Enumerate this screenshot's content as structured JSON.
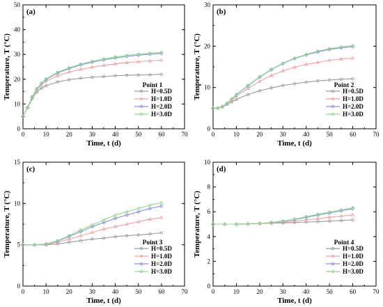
{
  "series_colors": [
    "#9a9a9a",
    "#f0a0a4",
    "#8a8fd8",
    "#90d890"
  ],
  "chart_data": [
    {
      "type": "line",
      "panel_label": "(a)",
      "point_label": "Point 1",
      "xlabel": "Time, t (d)",
      "ylabel": "Temperature, T (°C)",
      "xlim": [
        0,
        70
      ],
      "ylim": [
        0,
        50
      ],
      "xticks": [
        0,
        10,
        20,
        30,
        40,
        50,
        60,
        70
      ],
      "yticks": [
        0,
        10,
        20,
        30,
        40,
        50
      ],
      "grid": false,
      "legend_position": "bottom-right",
      "x": [
        0,
        2,
        4,
        6,
        8,
        10,
        15,
        20,
        25,
        30,
        35,
        40,
        45,
        50,
        55,
        60
      ],
      "series": [
        {
          "name": "H=0.5D",
          "values": [
            5,
            8.5,
            12.2,
            14.8,
            16.4,
            17.4,
            18.9,
            19.8,
            20.4,
            20.8,
            21.1,
            21.4,
            21.6,
            21.7,
            21.8,
            22
          ]
        },
        {
          "name": "H=1.0D",
          "values": [
            5,
            8.6,
            12.8,
            15.8,
            17.8,
            19.2,
            21.4,
            22.9,
            24,
            24.9,
            25.6,
            26.2,
            26.7,
            27.1,
            27.4,
            27.7
          ]
        },
        {
          "name": "H=2.0D",
          "values": [
            5,
            8.6,
            12.9,
            16.1,
            18.3,
            19.9,
            22.5,
            24.3,
            25.8,
            26.9,
            27.8,
            28.6,
            29.2,
            29.7,
            30.1,
            30.4
          ]
        },
        {
          "name": "H=3.0D",
          "values": [
            5,
            8.6,
            13,
            16.2,
            18.4,
            20.1,
            22.8,
            24.6,
            26.1,
            27.2,
            28.2,
            29,
            29.6,
            30.1,
            30.5,
            30.8
          ]
        }
      ]
    },
    {
      "type": "line",
      "panel_label": "(b)",
      "point_label": "Point 2",
      "xlabel": "Time, t (d)",
      "ylabel": "Temperature, T (°C)",
      "xlim": [
        0,
        70
      ],
      "ylim": [
        0,
        30
      ],
      "xticks": [
        0,
        10,
        20,
        30,
        40,
        50,
        60,
        70
      ],
      "yticks": [
        0,
        10,
        20,
        30
      ],
      "grid": false,
      "legend_position": "bottom-right",
      "x": [
        0,
        2,
        4,
        6,
        8,
        10,
        15,
        20,
        25,
        30,
        35,
        40,
        45,
        50,
        55,
        60
      ],
      "series": [
        {
          "name": "H=0.5D",
          "values": [
            5,
            5,
            5.3,
            5.9,
            6.5,
            7.1,
            8.3,
            9.2,
            9.9,
            10.5,
            10.9,
            11.3,
            11.6,
            11.8,
            12,
            12.1
          ]
        },
        {
          "name": "H=1.0D",
          "values": [
            5,
            5,
            5.4,
            6.1,
            7,
            7.9,
            9.8,
            11.5,
            12.9,
            14,
            14.9,
            15.6,
            16.1,
            16.6,
            16.9,
            17.1
          ]
        },
        {
          "name": "H=2.0D",
          "values": [
            5,
            5,
            5.4,
            6.2,
            7.2,
            8.2,
            10.4,
            12.5,
            14.3,
            15.8,
            17,
            17.9,
            18.6,
            19.2,
            19.6,
            19.9
          ]
        },
        {
          "name": "H=3.0D",
          "values": [
            5,
            5,
            5.4,
            6.2,
            7.2,
            8.3,
            10.5,
            12.6,
            14.4,
            15.9,
            17.1,
            18,
            18.8,
            19.4,
            19.8,
            20.1
          ]
        }
      ]
    },
    {
      "type": "line",
      "panel_label": "(c)",
      "point_label": "Point 3",
      "xlabel": "Time, t (d)",
      "ylabel": "Temperature, T (°C)",
      "xlim": [
        0,
        70
      ],
      "ylim": [
        0,
        15
      ],
      "xticks": [
        0,
        10,
        20,
        30,
        40,
        50,
        60,
        70
      ],
      "yticks": [
        0,
        5,
        10,
        15
      ],
      "grid": false,
      "legend_position": "bottom-right",
      "x": [
        0,
        5,
        10,
        15,
        20,
        25,
        30,
        35,
        40,
        45,
        50,
        55,
        60
      ],
      "series": [
        {
          "name": "H=0.5D",
          "values": [
            5,
            5,
            5,
            5.1,
            5.3,
            5.5,
            5.7,
            5.8,
            6,
            6.1,
            6.2,
            6.3,
            6.45
          ]
        },
        {
          "name": "H=1.0D",
          "values": [
            5,
            5,
            5.05,
            5.3,
            5.7,
            6.1,
            6.5,
            6.9,
            7.2,
            7.5,
            7.8,
            8.1,
            8.3
          ]
        },
        {
          "name": "H=2.0D",
          "values": [
            5,
            5,
            5.1,
            5.45,
            6,
            6.6,
            7.2,
            7.7,
            8.2,
            8.6,
            9,
            9.4,
            9.7
          ]
        },
        {
          "name": "H=3.0D",
          "values": [
            5,
            5,
            5.1,
            5.5,
            6.1,
            6.8,
            7.4,
            8,
            8.6,
            9,
            9.4,
            9.8,
            10.1
          ]
        }
      ]
    },
    {
      "type": "line",
      "panel_label": "(d)",
      "point_label": "Point 4",
      "xlabel": "Time, t (d)",
      "ylabel": "Temperature, T (°C)",
      "xlim": [
        0,
        70
      ],
      "ylim": [
        0,
        10
      ],
      "xticks": [
        0,
        10,
        20,
        30,
        40,
        50,
        60,
        70
      ],
      "yticks": [
        0,
        2,
        4,
        6,
        8,
        10
      ],
      "grid": false,
      "legend_position": "bottom-right",
      "x": [
        0,
        5,
        10,
        15,
        20,
        25,
        30,
        35,
        40,
        45,
        50,
        55,
        60
      ],
      "series": [
        {
          "name": "H=0.5D",
          "values": [
            5,
            5,
            5,
            5.02,
            5.05,
            5.08,
            5.1,
            5.13,
            5.17,
            5.2,
            5.25,
            5.3,
            5.35
          ]
        },
        {
          "name": "H=1.0D",
          "values": [
            5,
            5,
            5,
            5.02,
            5.05,
            5.1,
            5.15,
            5.25,
            5.35,
            5.45,
            5.55,
            5.65,
            5.75
          ]
        },
        {
          "name": "H=2.0D",
          "values": [
            5,
            5,
            5,
            5.02,
            5.06,
            5.13,
            5.22,
            5.37,
            5.55,
            5.73,
            5.9,
            6.08,
            6.25
          ]
        },
        {
          "name": "H=3.0D",
          "values": [
            5,
            5,
            5,
            5.02,
            5.06,
            5.14,
            5.25,
            5.4,
            5.6,
            5.8,
            5.97,
            6.15,
            6.32
          ]
        }
      ]
    }
  ]
}
